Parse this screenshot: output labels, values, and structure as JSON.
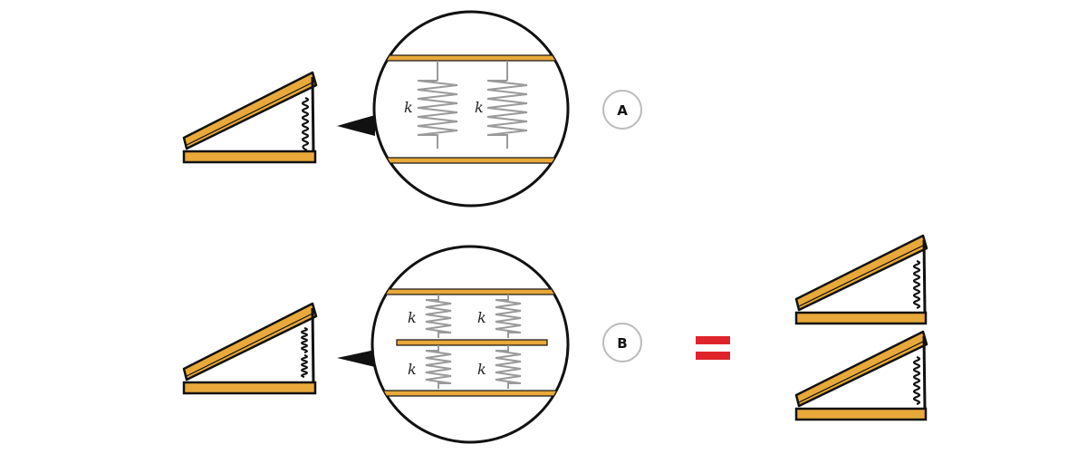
{
  "labels": {
    "a": "A",
    "b": "B",
    "spring_constant": "k"
  },
  "colors": {
    "wood": "#E8A93A",
    "outline": "#111111",
    "spring_gray": "#9a9a9a",
    "equals": "#E0242B",
    "badge_stroke": "#bbbbbb"
  },
  "icons": {
    "equals": "equals-sign-icon",
    "callout": "callout-pointer-icon"
  }
}
